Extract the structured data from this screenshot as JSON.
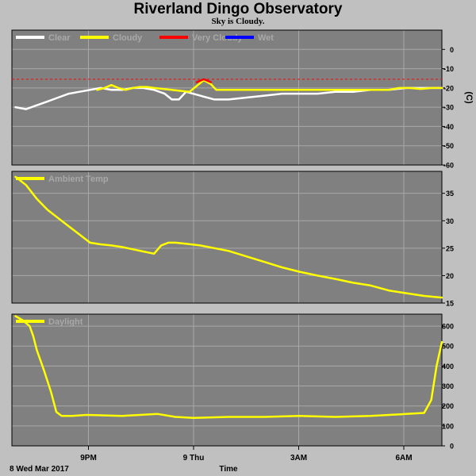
{
  "title": "Riverland Dingo Observatory",
  "subtitle": "Sky is Cloudy.",
  "x_axis": {
    "label": "Time",
    "date_label": "8 Wed Mar 2017",
    "ticks": [
      "9PM",
      "9 Thu",
      "3AM",
      "6AM"
    ]
  },
  "chart_data": [
    {
      "type": "line",
      "title": "",
      "ylabel": "(C)",
      "ylim": [
        -60,
        10
      ],
      "yticks": [
        0,
        -10,
        -20,
        -30,
        -40,
        -50,
        -60
      ],
      "x_unit": "hours since 18:00",
      "xlim": [
        -0.1,
        12.0
      ],
      "legend": [
        {
          "name": "Clear",
          "color": "#ffffff"
        },
        {
          "name": "Cloudy",
          "color": "#ffff00"
        },
        {
          "name": "Very Cloudy",
          "color": "#ff0000"
        },
        {
          "name": "Wet",
          "color": "#0000ff"
        }
      ],
      "legend_placement": "top-left",
      "threshold": {
        "y": -15.5,
        "color": "#ff0000",
        "style": "dashed"
      },
      "series": [
        {
          "name": "Clear",
          "color": "#ffffff",
          "x": [
            0,
            0.3,
            0.6,
            0.9,
            1.2,
            1.5,
            1.8,
            2.1,
            2.4,
            2.7,
            3.0,
            3.3,
            3.6,
            3.9,
            4.2,
            4.4,
            4.6,
            4.8,
            5.2,
            5.6,
            6.0,
            6.5,
            7.0,
            7.5,
            8.0,
            8.5,
            9.0,
            9.5,
            10.0,
            10.5,
            11.0,
            11.5,
            12.0
          ],
          "y": [
            -30,
            -31,
            -29,
            -27,
            -25,
            -23,
            -22,
            -21,
            -20,
            -21,
            -21,
            -20,
            -20,
            -21,
            -23,
            -26,
            -26,
            -22,
            -24,
            -26,
            -26,
            -25,
            -24,
            -23,
            -23,
            -23,
            -22,
            -22,
            -21,
            -21,
            -20,
            -20,
            -20
          ]
        },
        {
          "name": "Cloudy",
          "color": "#ffff00",
          "x": [
            2.3,
            2.5,
            2.7,
            2.9,
            3.1,
            3.3,
            3.5,
            3.7,
            3.9,
            4.9,
            5.1,
            5.3,
            5.5,
            5.65,
            10.5,
            10.8,
            11.1,
            11.4,
            11.7,
            12.0
          ],
          "y": [
            -21,
            -20,
            -18.5,
            -20,
            -21,
            -20,
            -19.5,
            -19.5,
            -20,
            -22,
            -19,
            -16,
            -18,
            -21,
            -21,
            -20,
            -20,
            -20.5,
            -20,
            -20
          ]
        },
        {
          "name": "Very Cloudy",
          "color": "#ff0000",
          "x": [
            5.1,
            5.3,
            5.5
          ],
          "y": [
            -17,
            -15.5,
            -17
          ]
        }
      ]
    },
    {
      "type": "line",
      "title": "",
      "ylabel": "",
      "ylim": [
        15,
        39
      ],
      "yticks": [
        35,
        30,
        25,
        20,
        15
      ],
      "x_unit": "hours since 18:00",
      "xlim": [
        -0.1,
        12.0
      ],
      "legend": [
        {
          "name": "Ambient Temp",
          "color": "#ffff00"
        }
      ],
      "legend_placement": "top-left",
      "series": [
        {
          "name": "Ambient Temp",
          "color": "#ffff00",
          "x": [
            0,
            0.3,
            0.6,
            0.9,
            1.2,
            1.5,
            1.8,
            2.1,
            2.4,
            2.7,
            3.0,
            3.3,
            3.6,
            3.9,
            4.1,
            4.3,
            4.5,
            4.8,
            5.2,
            5.6,
            6.0,
            6.5,
            7.0,
            7.5,
            8.0,
            8.5,
            9.0,
            9.5,
            10.0,
            10.5,
            11.0,
            11.5,
            12.0
          ],
          "y": [
            38,
            36.5,
            34,
            32,
            30.5,
            29,
            27.5,
            26,
            25.7,
            25.5,
            25.2,
            24.8,
            24.4,
            24,
            25.5,
            26,
            26,
            25.8,
            25.5,
            25,
            24.5,
            23.5,
            22.5,
            21.5,
            20.7,
            20,
            19.4,
            18.7,
            18.2,
            17.3,
            16.8,
            16.3,
            16
          ]
        }
      ]
    },
    {
      "type": "line",
      "title": "",
      "ylabel": "",
      "ylim": [
        0,
        660
      ],
      "yticks": [
        600,
        500,
        400,
        300,
        200,
        100,
        0
      ],
      "x_unit": "hours since 18:00",
      "xlim": [
        -0.1,
        12.0
      ],
      "legend": [
        {
          "name": "Daylight",
          "color": "#ffff00"
        }
      ],
      "legend_placement": "top-left",
      "series": [
        {
          "name": "Daylight",
          "color": "#ffff00",
          "x": [
            0,
            0.2,
            0.4,
            0.5,
            0.6,
            0.8,
            1.0,
            1.15,
            1.3,
            1.6,
            2.0,
            3.0,
            4.0,
            4.5,
            5.0,
            6.0,
            7.0,
            8.0,
            9.0,
            10.0,
            11.0,
            11.5,
            11.7,
            11.85,
            12.0
          ],
          "y": [
            650,
            630,
            600,
            550,
            480,
            380,
            270,
            170,
            150,
            150,
            155,
            150,
            160,
            145,
            140,
            145,
            145,
            150,
            145,
            150,
            160,
            165,
            230,
            400,
            520
          ]
        }
      ]
    }
  ]
}
